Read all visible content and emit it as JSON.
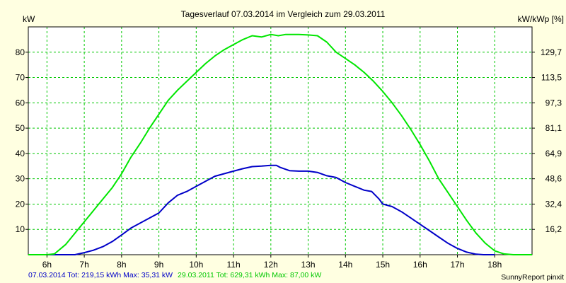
{
  "chart_data": {
    "type": "line",
    "title": "Tagesverlauf 07.03.2014 im Vergleich zum 29.03.2011",
    "ylabel_left": "kW",
    "ylabel_right": "kW/kWp [%]",
    "xlim": [
      5.5,
      19.0
    ],
    "ylim": [
      0,
      90
    ],
    "x_ticks": [
      6,
      7,
      8,
      9,
      10,
      11,
      12,
      13,
      14,
      15,
      16,
      17,
      18
    ],
    "x_tick_labels": [
      "6h",
      "7h",
      "8h",
      "9h",
      "10h",
      "11h",
      "12h",
      "13h",
      "14h",
      "15h",
      "16h",
      "17h",
      "18h"
    ],
    "y_left_ticks": [
      10,
      20,
      30,
      40,
      50,
      60,
      70,
      80
    ],
    "y_right_ticks": [
      {
        "at": 10,
        "label": "16,2"
      },
      {
        "at": 20,
        "label": "32,4"
      },
      {
        "at": 30,
        "label": "48,6"
      },
      {
        "at": 40,
        "label": "64,9"
      },
      {
        "at": 50,
        "label": "81,1"
      },
      {
        "at": 60,
        "label": "97,3"
      },
      {
        "at": 70,
        "label": "113,5"
      },
      {
        "at": 80,
        "label": "129,7"
      }
    ],
    "grid": true,
    "series": [
      {
        "name": "07.03.2014",
        "color": "#0000c8",
        "x": [
          5.5,
          6.75,
          7.0,
          7.25,
          7.5,
          7.75,
          8.0,
          8.25,
          8.5,
          8.75,
          9.0,
          9.25,
          9.5,
          9.75,
          10.0,
          10.25,
          10.5,
          10.75,
          11.0,
          11.25,
          11.5,
          11.75,
          12.0,
          12.15,
          12.25,
          12.5,
          12.75,
          13.0,
          13.25,
          13.5,
          13.75,
          14.0,
          14.25,
          14.5,
          14.7,
          14.9,
          15.0,
          15.25,
          15.5,
          15.75,
          16.0,
          16.25,
          16.5,
          16.75,
          17.0,
          17.25,
          17.5,
          17.7,
          18.0
        ],
        "y": [
          0,
          0,
          0.8,
          1.8,
          3.2,
          5.2,
          7.8,
          10.5,
          12.5,
          14.5,
          16.5,
          20.5,
          23.5,
          25,
          27,
          29,
          31,
          32,
          33,
          34,
          34.8,
          35,
          35.3,
          35.31,
          34.5,
          33.2,
          33,
          33,
          32.5,
          31.2,
          30.5,
          28.5,
          27,
          25.5,
          25,
          22,
          20,
          19,
          17,
          14.5,
          12,
          9.5,
          7,
          4.5,
          2.5,
          1.0,
          0.2,
          0,
          0
        ]
      },
      {
        "name": "29.03.2011",
        "color": "#00e600",
        "x": [
          5.5,
          6.0,
          6.2,
          6.5,
          6.75,
          7.0,
          7.25,
          7.5,
          7.75,
          8.0,
          8.25,
          8.5,
          8.75,
          9.0,
          9.25,
          9.5,
          9.75,
          10.0,
          10.25,
          10.5,
          10.75,
          11.0,
          11.25,
          11.5,
          11.75,
          12.0,
          12.2,
          12.4,
          12.5,
          12.75,
          13.0,
          13.25,
          13.5,
          13.75,
          14.0,
          14.25,
          14.5,
          14.75,
          15.0,
          15.25,
          15.5,
          15.75,
          16.0,
          16.25,
          16.5,
          16.75,
          17.0,
          17.25,
          17.5,
          17.75,
          18.0,
          18.25,
          18.5,
          18.8,
          19.0
        ],
        "y": [
          0,
          0,
          0.3,
          4,
          8.5,
          13,
          17.5,
          22,
          26.5,
          32,
          38.5,
          44,
          50,
          55.5,
          61,
          65,
          68.5,
          72,
          75.5,
          78.5,
          81,
          83,
          85,
          86.5,
          86,
          87,
          86.5,
          87,
          87,
          87,
          86.8,
          86.5,
          84,
          80,
          77.5,
          75,
          72,
          68.5,
          64.5,
          60,
          55,
          49.5,
          43.5,
          37,
          30,
          24.5,
          19,
          13.5,
          8.5,
          4.5,
          1.5,
          0.3,
          0,
          0,
          0
        ]
      }
    ],
    "legend": [
      {
        "text": "07.03.2014 Tot: 219,15 kWh Max: 35,31 kW",
        "color": "#0000c8"
      },
      {
        "text": "29.03.2011 Tot: 629,31 kWh Max: 87,00 kW",
        "color": "#00c800"
      }
    ]
  },
  "footer": {
    "credit": "SunnyReport pinxit"
  }
}
